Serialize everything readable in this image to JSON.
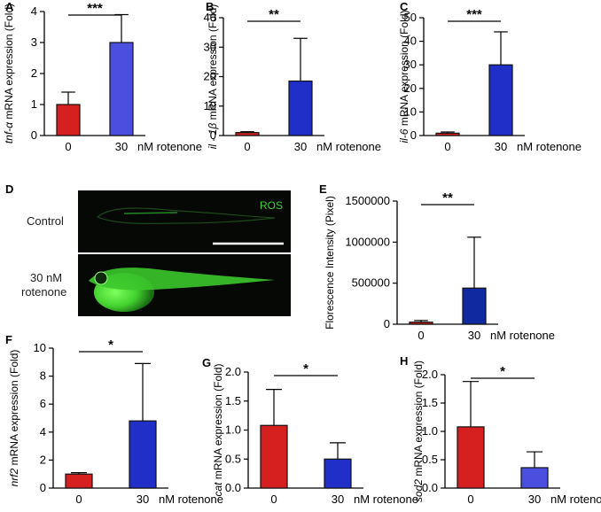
{
  "chart_data": [
    {
      "panel": "A",
      "type": "bar",
      "ylabel_italic": "tnf-α",
      "ylabel_rest": " mRNA expression (Fold)",
      "categories": [
        "0",
        "30"
      ],
      "unit": "nM rotenone",
      "values": [
        1.0,
        3.0
      ],
      "errors": [
        0.4,
        0.9
      ],
      "colors": [
        "#d61f1f",
        "#4a4fe0"
      ],
      "ylim": [
        0,
        4
      ],
      "yticks": [
        0,
        1,
        2,
        3,
        4
      ],
      "significance": "***"
    },
    {
      "panel": "B",
      "type": "bar",
      "ylabel_italic": "il - 1β",
      "ylabel_rest": " mRNA expression (Fold)",
      "categories": [
        "0",
        "30"
      ],
      "unit": "nM rotenone",
      "values": [
        1.0,
        18.5
      ],
      "errors": [
        0.3,
        14.5
      ],
      "colors": [
        "#d61f1f",
        "#1f2fc8"
      ],
      "ylim": [
        0,
        40
      ],
      "yticks": [
        0,
        10,
        20,
        30,
        40
      ],
      "significance": "**"
    },
    {
      "panel": "C",
      "type": "bar",
      "ylabel_italic": "il-6",
      "ylabel_rest": " mRNA expression (Fold)",
      "categories": [
        "0",
        "30"
      ],
      "unit": "nM rotenone",
      "values": [
        1.0,
        30.0
      ],
      "errors": [
        0.5,
        14.0
      ],
      "colors": [
        "#d61f1f",
        "#1f2fc8"
      ],
      "ylim": [
        0,
        50
      ],
      "yticks": [
        0,
        10,
        20,
        30,
        40,
        50
      ],
      "significance": "***"
    },
    {
      "panel": "E",
      "type": "bar",
      "ylabel_italic": "",
      "ylabel_rest": "Florescence Intensity (Pixel)",
      "categories": [
        "0",
        "30"
      ],
      "unit": "nM rotenone",
      "values": [
        25000,
        440000
      ],
      "errors": [
        20000,
        620000
      ],
      "colors": [
        "#d61f1f",
        "#0f2aa0"
      ],
      "ylim": [
        0,
        1500000
      ],
      "yticks": [
        0,
        500000,
        1000000,
        1500000
      ],
      "significance": "**"
    },
    {
      "panel": "F",
      "type": "bar",
      "ylabel_italic": "nrf2",
      "ylabel_rest": " mRNA expression (Fold)",
      "categories": [
        "0",
        "30"
      ],
      "unit": "nM rotenone",
      "values": [
        1.0,
        4.8
      ],
      "errors": [
        0.1,
        4.1
      ],
      "colors": [
        "#d61f1f",
        "#1f2fc8"
      ],
      "ylim": [
        0,
        10
      ],
      "yticks": [
        0,
        2,
        4,
        6,
        8,
        10
      ],
      "significance": "*"
    },
    {
      "panel": "G",
      "type": "bar",
      "ylabel_italic": "cat",
      "ylabel_rest": " mRNA expression (Fold)",
      "categories": [
        "0",
        "30"
      ],
      "unit": "nM rotenone",
      "values": [
        1.08,
        0.5
      ],
      "errors": [
        0.62,
        0.28
      ],
      "colors": [
        "#d61f1f",
        "#1f2fc8"
      ],
      "ylim": [
        0,
        2.0
      ],
      "yticks": [
        0.0,
        0.5,
        1.0,
        1.5,
        2.0
      ],
      "significance": "*"
    },
    {
      "panel": "H",
      "type": "bar",
      "ylabel_italic": "sod2",
      "ylabel_rest": " mRNA expression (Fold)",
      "categories": [
        "0",
        "30"
      ],
      "unit": "nM rotenone",
      "values": [
        1.08,
        0.36
      ],
      "errors": [
        0.8,
        0.28
      ],
      "colors": [
        "#d61f1f",
        "#4a4fe0"
      ],
      "ylim": [
        0,
        2.0
      ],
      "yticks": [
        0.0,
        0.5,
        1.0,
        1.5,
        2.0
      ],
      "significance": "*"
    }
  ],
  "micrograph": {
    "panel": "D",
    "stain_label": "ROS",
    "rows": [
      {
        "label_lines": [
          "Control"
        ]
      },
      {
        "label_lines": [
          "30 nM",
          "rotenone"
        ]
      }
    ]
  }
}
